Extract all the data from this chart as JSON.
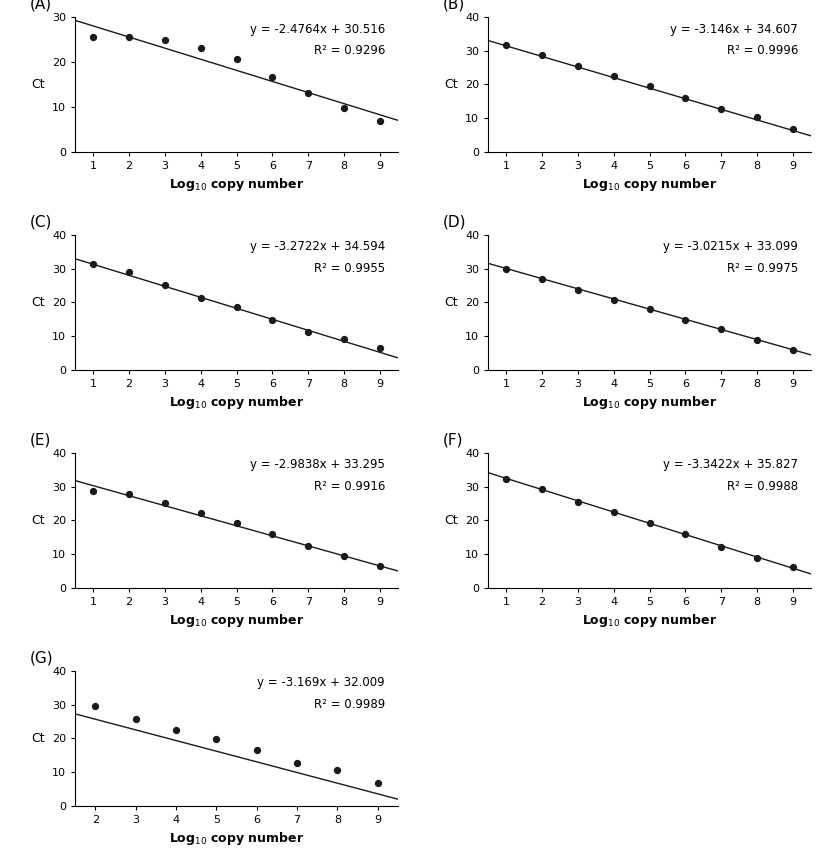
{
  "panels": [
    {
      "label": "A",
      "slope": -2.4764,
      "intercept": 30.516,
      "eq": "y = -2.4764x + 30.516",
      "r2_str": "R² = 0.9296",
      "x_data": [
        1,
        2,
        3,
        4,
        5,
        6,
        7,
        8,
        9
      ],
      "y_data": [
        25.5,
        25.6,
        24.9,
        23.2,
        20.6,
        16.7,
        13.1,
        9.8,
        6.8
      ],
      "xmin": 0.5,
      "xmax": 9.5,
      "ymin": 0,
      "ymax": 30,
      "yticks": [
        0,
        10,
        20,
        30
      ],
      "xticks": [
        1,
        2,
        3,
        4,
        5,
        6,
        7,
        8,
        9
      ],
      "line_xstart": 0.5,
      "line_xend": 9.5
    },
    {
      "label": "B",
      "slope": -3.146,
      "intercept": 34.607,
      "eq": "y = -3.146x + 34.607",
      "r2_str": "R² = 0.9996",
      "x_data": [
        1,
        2,
        3,
        4,
        5,
        6,
        7,
        8,
        9
      ],
      "y_data": [
        31.6,
        28.8,
        25.5,
        22.4,
        19.5,
        16.1,
        12.7,
        10.2,
        6.6
      ],
      "xmin": 0.5,
      "xmax": 9.5,
      "ymin": 0,
      "ymax": 40,
      "yticks": [
        0,
        10,
        20,
        30,
        40
      ],
      "xticks": [
        1,
        2,
        3,
        4,
        5,
        6,
        7,
        8,
        9
      ],
      "line_xstart": 0.5,
      "line_xend": 9.5
    },
    {
      "label": "C",
      "slope": -3.2722,
      "intercept": 34.594,
      "eq": "y = -3.2722x + 34.594",
      "r2_str": "R² = 0.9955",
      "x_data": [
        1,
        2,
        3,
        4,
        5,
        6,
        7,
        8,
        9
      ],
      "y_data": [
        31.5,
        29.1,
        25.1,
        21.3,
        18.7,
        14.9,
        11.1,
        9.1,
        6.4
      ],
      "xmin": 0.5,
      "xmax": 9.5,
      "ymin": 0,
      "ymax": 40,
      "yticks": [
        0,
        10,
        20,
        30,
        40
      ],
      "xticks": [
        1,
        2,
        3,
        4,
        5,
        6,
        7,
        8,
        9
      ],
      "line_xstart": 0.5,
      "line_xend": 9.5
    },
    {
      "label": "D",
      "slope": -3.0215,
      "intercept": 33.099,
      "eq": "y = -3.0215x + 33.099",
      "r2_str": "R² = 0.9975",
      "x_data": [
        1,
        2,
        3,
        4,
        5,
        6,
        7,
        8,
        9
      ],
      "y_data": [
        29.8,
        26.9,
        23.7,
        20.6,
        18.0,
        14.8,
        12.0,
        8.8,
        5.7
      ],
      "xmin": 0.5,
      "xmax": 9.5,
      "ymin": 0,
      "ymax": 40,
      "yticks": [
        0,
        10,
        20,
        30,
        40
      ],
      "xticks": [
        1,
        2,
        3,
        4,
        5,
        6,
        7,
        8,
        9
      ],
      "line_xstart": 0.5,
      "line_xend": 9.5
    },
    {
      "label": "E",
      "slope": -2.9838,
      "intercept": 33.295,
      "eq": "y = -2.9838x + 33.295",
      "r2_str": "R² = 0.9916",
      "x_data": [
        1,
        2,
        3,
        4,
        5,
        6,
        7,
        8,
        9
      ],
      "y_data": [
        28.8,
        27.9,
        25.3,
        22.2,
        19.3,
        16.0,
        12.5,
        9.5,
        6.5
      ],
      "xmin": 0.5,
      "xmax": 9.5,
      "ymin": 0,
      "ymax": 40,
      "yticks": [
        0,
        10,
        20,
        30,
        40
      ],
      "xticks": [
        1,
        2,
        3,
        4,
        5,
        6,
        7,
        8,
        9
      ],
      "line_xstart": 0.5,
      "line_xend": 9.5
    },
    {
      "label": "F",
      "slope": -3.3422,
      "intercept": 35.827,
      "eq": "y = -3.3422x + 35.827",
      "r2_str": "R² = 0.9988",
      "x_data": [
        1,
        2,
        3,
        4,
        5,
        6,
        7,
        8,
        9
      ],
      "y_data": [
        32.3,
        29.3,
        25.6,
        22.4,
        19.1,
        16.0,
        12.1,
        8.8,
        6.0
      ],
      "xmin": 0.5,
      "xmax": 9.5,
      "ymin": 0,
      "ymax": 40,
      "yticks": [
        0,
        10,
        20,
        30,
        40
      ],
      "xticks": [
        1,
        2,
        3,
        4,
        5,
        6,
        7,
        8,
        9
      ],
      "line_xstart": 0.5,
      "line_xend": 9.5
    },
    {
      "label": "G",
      "slope": -3.169,
      "intercept": 32.009,
      "eq": "y = -3.169x + 32.009",
      "r2_str": "R² = 0.9989",
      "x_data": [
        2,
        3,
        4,
        5,
        6,
        7,
        8,
        9
      ],
      "y_data": [
        29.5,
        25.7,
        22.5,
        19.7,
        16.5,
        12.7,
        10.5,
        6.7
      ],
      "xmin": 1.5,
      "xmax": 9.5,
      "ymin": 0,
      "ymax": 40,
      "yticks": [
        0,
        10,
        20,
        30,
        40
      ],
      "xticks": [
        2,
        3,
        4,
        5,
        6,
        7,
        8,
        9
      ],
      "line_xstart": 1.5,
      "line_xend": 9.5
    }
  ],
  "xlabel": "Log$_{10}$ copy number",
  "ylabel": "Ct",
  "dot_color": "#1a1a1a",
  "dot_size": 18,
  "line_color": "#1a1a1a",
  "line_width": 1.0,
  "font_size_label": 9,
  "font_size_eq": 8.5,
  "font_size_panel_label": 11,
  "font_size_tick": 8,
  "bg_color": "white"
}
